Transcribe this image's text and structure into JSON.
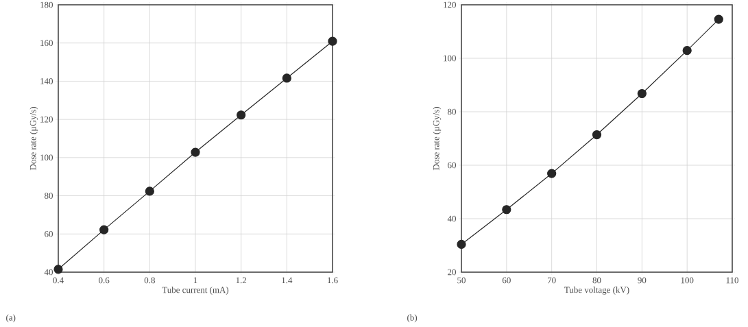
{
  "chart_data": [
    {
      "type": "line",
      "xlabel": "Tube current (mA)",
      "ylabel": "Dose rate (µGy/s)",
      "x": [
        0.4,
        0.6,
        0.8,
        1,
        1.2,
        1.4,
        1.6
      ],
      "series": [
        {
          "color": "#262626",
          "values": [
            41.5,
            62.2,
            82.4,
            102.8,
            122.3,
            141.6,
            160.9
          ]
        }
      ],
      "xlim": [
        0.4,
        1.6
      ],
      "ylim": [
        40,
        180
      ],
      "xticks": [
        0.4,
        0.6,
        0.8,
        1,
        1.2,
        1.4,
        1.6
      ],
      "yticks": [
        40,
        60,
        80,
        100,
        120,
        140,
        160,
        180
      ],
      "grid": true,
      "marker": "circle",
      "line_style": "solid",
      "annotations": [
        "(a)"
      ]
    },
    {
      "type": "line",
      "xlabel": "Tube voltage (kV)",
      "ylabel": "Dose rate (µGy/s)",
      "x": [
        50,
        60,
        70,
        80,
        90,
        100,
        107
      ],
      "series": [
        {
          "color": "#262626",
          "values": [
            30.4,
            43.4,
            56.9,
            71.4,
            86.8,
            102.9,
            114.6
          ]
        }
      ],
      "xlim": [
        50,
        110
      ],
      "ylim": [
        20,
        120
      ],
      "xticks": [
        50,
        60,
        70,
        80,
        90,
        100,
        110
      ],
      "yticks": [
        20,
        40,
        60,
        80,
        100,
        120
      ],
      "grid": true,
      "marker": "circle",
      "line_style": "solid",
      "annotations": [
        "(b)"
      ]
    }
  ]
}
